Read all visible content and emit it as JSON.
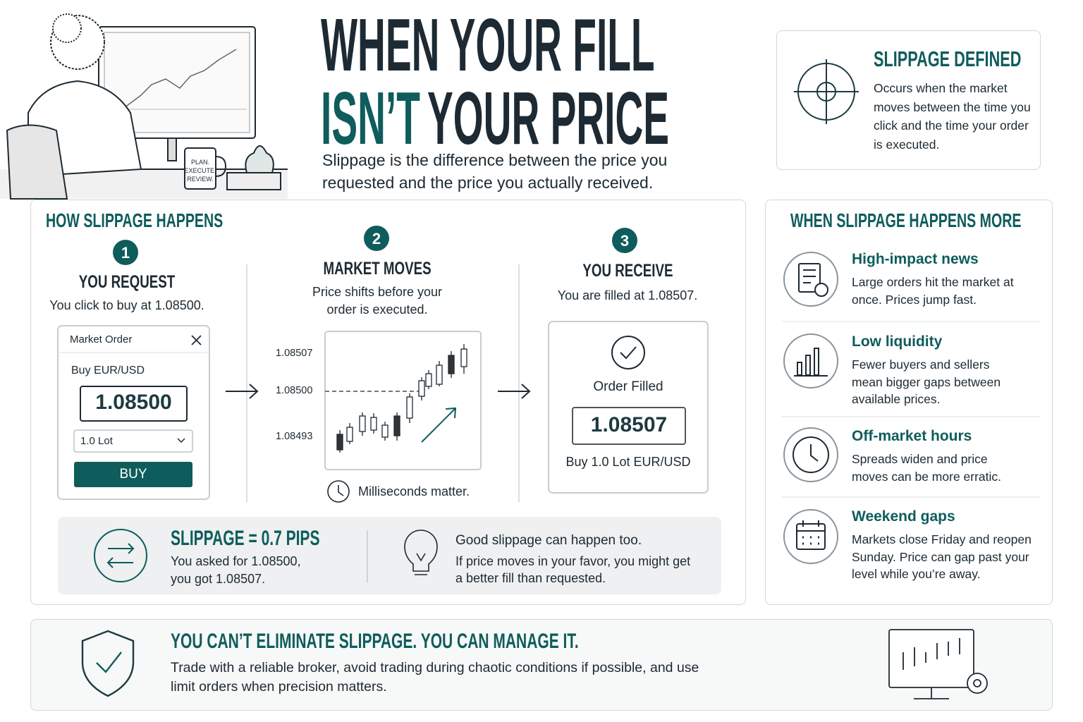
{
  "header": {
    "title_line1": "WHEN YOUR FILL",
    "title_line2_accent": "ISN’T",
    "title_line2_rest": "YOUR PRICE",
    "subtitle": "Slippage is the difference between the price you requested and the price you actually received."
  },
  "illustration": {
    "mug_text": [
      "PLAN.",
      "EXECUTE.",
      "REVIEW."
    ]
  },
  "definition": {
    "title": "SLIPPAGE DEFINED",
    "text": "Occurs when the market moves between the time you click and the time your order is executed."
  },
  "how": {
    "title": "HOW SLIPPAGE HAPPENS",
    "steps": [
      {
        "number": "1",
        "title": "YOU REQUEST",
        "text": "You click to buy at 1.08500."
      },
      {
        "number": "2",
        "title": "MARKET MOVES",
        "text": "Price shifts before your order is executed."
      },
      {
        "number": "3",
        "title": "YOU RECEIVE",
        "text": "You are filled at 1.08507."
      }
    ],
    "order_ticket": {
      "title": "Market Order",
      "pair": "Buy EUR/USD",
      "price": "1.08500",
      "lot": "1.0 Lot",
      "button": "BUY"
    },
    "price_chart": {
      "labels": [
        "1.08507",
        "1.08500",
        "1.08493"
      ],
      "note": "Milliseconds matter."
    },
    "fill": {
      "status": "Order Filled",
      "price": "1.08507",
      "detail": "Buy 1.0 Lot EUR/USD"
    },
    "summary": {
      "title": "SLIPPAGE = 0.7 PIPS",
      "text": "You asked for 1.08500, you got 1.08507."
    },
    "tip": {
      "title": "Good slippage can happen too.",
      "text": "If price moves in your favor, you might get a better fill than requested."
    }
  },
  "conditions": {
    "title": "WHEN SLIPPAGE HAPPENS MORE",
    "items": [
      {
        "title": "High-impact news",
        "text": "Large orders hit the market at once. Prices jump fast."
      },
      {
        "title": "Low liquidity",
        "text": "Fewer buyers and sellers mean bigger gaps between available prices."
      },
      {
        "title": "Off-market hours",
        "text": "Spreads widen and price moves can be more erratic."
      },
      {
        "title": "Weekend gaps",
        "text": "Markets close Friday and reopen Sunday. Price can gap past your level while you’re away."
      }
    ]
  },
  "footer": {
    "title": "YOU CAN’T ELIMINATE SLIPPAGE. YOU CAN MANAGE IT.",
    "text": "Trade with a reliable broker, avoid trading during chaotic conditions if possible, and use limit orders when precision matters."
  }
}
